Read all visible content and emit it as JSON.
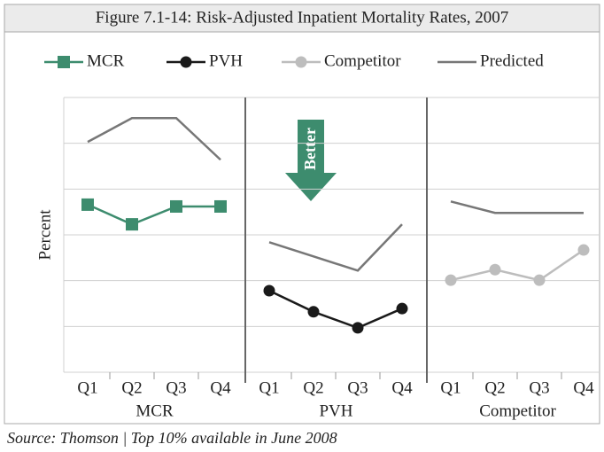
{
  "chart_data": {
    "type": "line",
    "title": "Figure 7.1-14: Risk-Adjusted Inpatient Mortality Rates, 2007",
    "y_label": "Percent",
    "annotation": "Better",
    "source": "Source: Thomson | Top 10% available in June 2008",
    "categories": [
      "Q1",
      "Q2",
      "Q3",
      "Q4"
    ],
    "panels": [
      "MCR",
      "PVH",
      "Competitor"
    ],
    "ylim": [
      0,
      6
    ],
    "yticks": [
      0,
      1,
      2,
      3,
      4,
      5,
      6
    ],
    "grid": true,
    "series": [
      {
        "name": "MCR",
        "color": "#3d8c6e",
        "marker": "square",
        "values": [
          3.66,
          3.23,
          3.62,
          3.62
        ]
      },
      {
        "name": "PVH",
        "color": "#1a1a1a",
        "marker": "circle",
        "values": [
          1.78,
          1.32,
          0.97,
          1.39
        ]
      },
      {
        "name": "Competitor",
        "color": "#bdbdbd",
        "marker": "circle",
        "values": [
          2.01,
          2.24,
          2.01,
          2.67
        ]
      },
      {
        "name": "Predicted",
        "color": "#777777",
        "marker": "none",
        "values": [
          [
            5.03,
            5.55,
            5.55,
            4.64
          ],
          [
            2.84,
            2.53,
            2.22,
            3.23
          ],
          [
            3.73,
            3.48,
            3.48,
            3.48
          ]
        ]
      }
    ]
  }
}
